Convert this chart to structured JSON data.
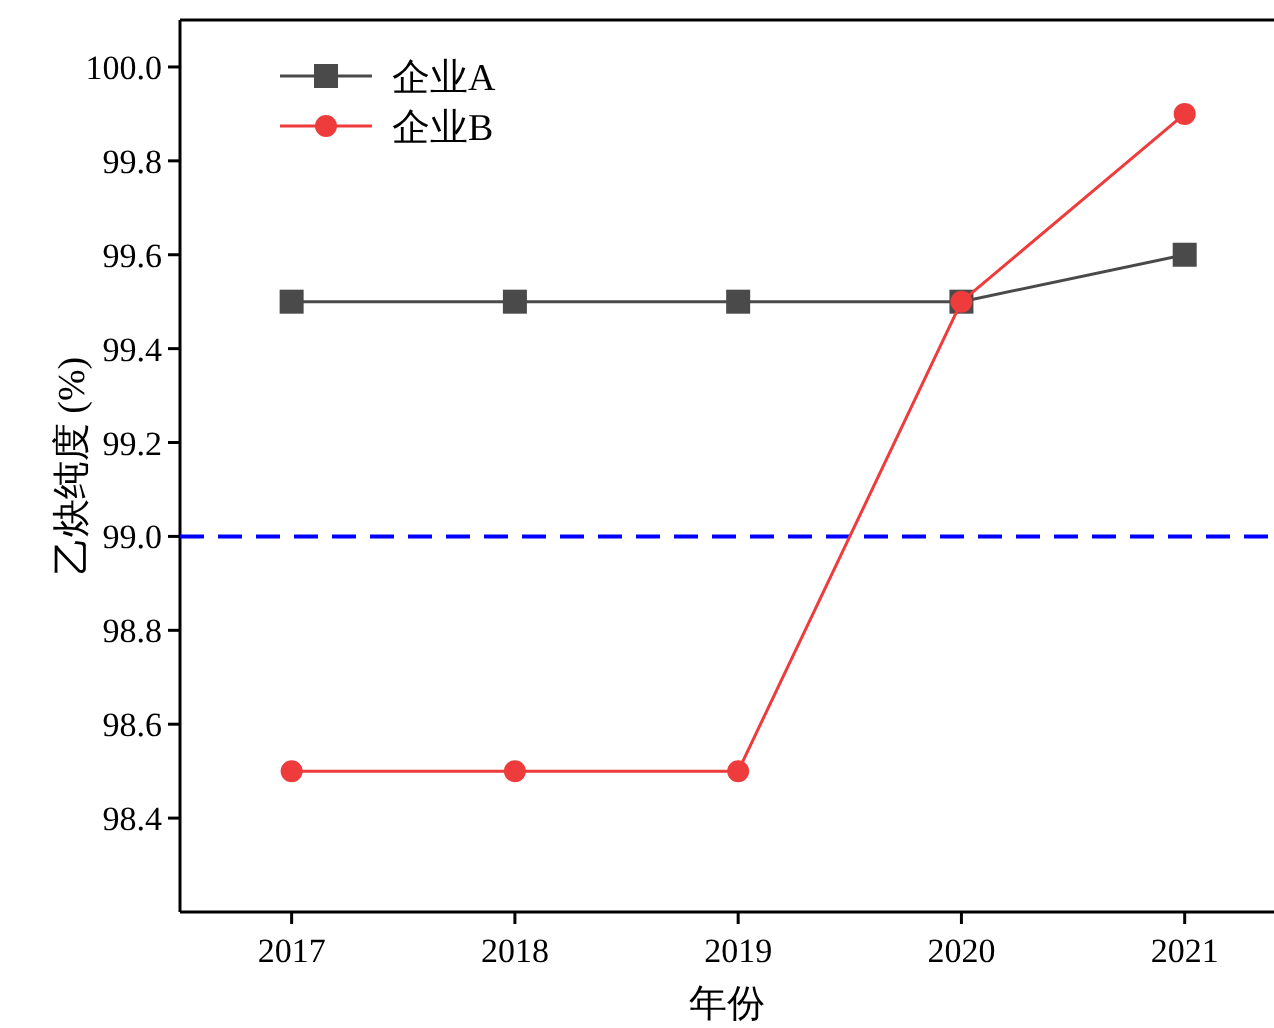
{
  "chart_data": {
    "type": "line",
    "xlabel": "年份",
    "ylabel": "乙炔纯度 (%)",
    "x": [
      2017,
      2018,
      2019,
      2020,
      2021
    ],
    "xlim": [
      2016.5,
      2021.4
    ],
    "ylim": [
      98.2,
      100.1
    ],
    "xticks": [
      2017,
      2018,
      2019,
      2020,
      2021
    ],
    "yticks": [
      98.4,
      98.6,
      98.8,
      {
        "value": 99,
        "label": "99.0"
      },
      99.2,
      99.4,
      99.6,
      99.8,
      {
        "value": 100,
        "label": "100.0"
      }
    ],
    "series": [
      {
        "name": "企业A",
        "color": "#4a4a4a",
        "marker": "square",
        "values": [
          99.5,
          99.5,
          99.5,
          99.5,
          99.6
        ]
      },
      {
        "name": "企业B",
        "color": "#ee3b3b",
        "marker": "circle",
        "values": [
          98.5,
          98.5,
          98.5,
          99.5,
          99.9
        ]
      }
    ],
    "ref_lines": [
      {
        "axis": "y",
        "value": 99,
        "color": "#0000ff",
        "line_style": "dashed"
      }
    ],
    "legend": "top left"
  }
}
